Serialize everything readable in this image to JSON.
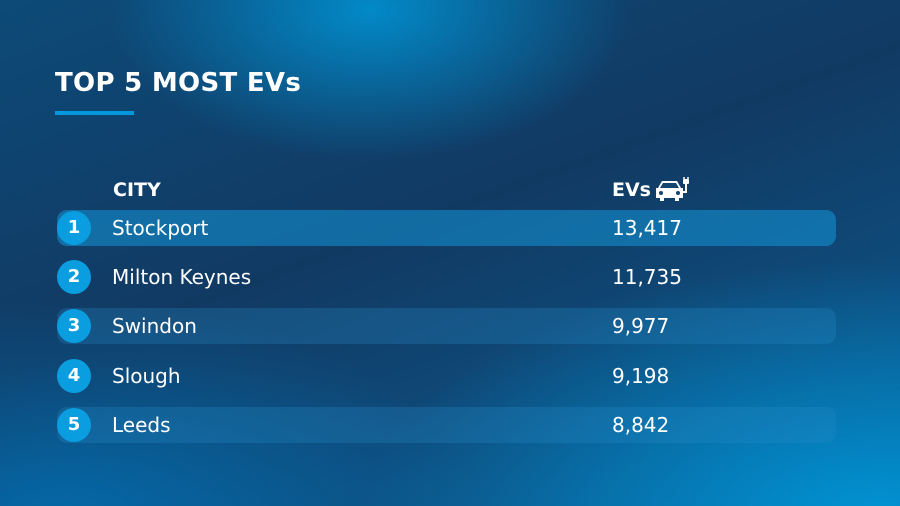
{
  "header": {
    "title": "TOP 5 MOST EVs"
  },
  "table": {
    "columns": [
      "CITY",
      "EVs"
    ],
    "rows": [
      [
        "1",
        "Stockport",
        "13,417"
      ],
      [
        "2",
        "Milton Keynes",
        "11,735"
      ],
      [
        "3",
        "Swindon",
        "9,977"
      ],
      [
        "4",
        "Slough",
        "9,198"
      ],
      [
        "5",
        "Leeds",
        "8,842"
      ]
    ]
  }
}
